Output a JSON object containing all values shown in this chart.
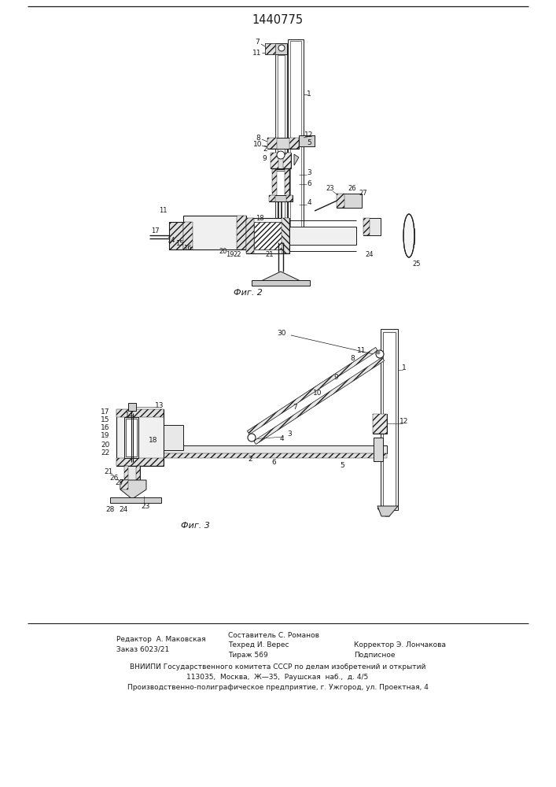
{
  "title": "1440775",
  "title_fontsize": 10,
  "background_color": "#ffffff",
  "line_color": "#1a1a1a",
  "fig2_caption": "Фиг. 2",
  "fig3_caption": "Фиг. 3",
  "footer": {
    "editor": "Редактор  А. Маковская",
    "compiler": "Составитель С. Романов",
    "order": "Заказ 6023/21",
    "techred": "Техред И. Верес",
    "corrector": "Корректор Э. Лончакова",
    "tirazh": "Тираж 569",
    "podpisnoe": "Подписное",
    "vniipи": "ВНИИПИ Государственного комитета СССР по делам изобретений и открытий",
    "address1": "113035,  Москва,  Ж—35,  Раушская  наб.,  д. 4/5",
    "address2": "Производственно-полиграфическое предприятие, г. Ужгород, ул. Проектная, 4"
  }
}
